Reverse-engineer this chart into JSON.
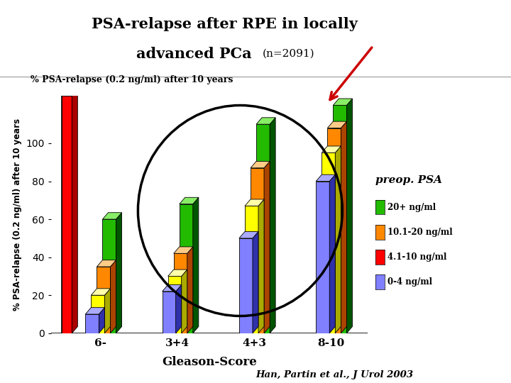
{
  "title_line1": "PSA-relapse after RPE in locally",
  "title_line2": "advanced PCa",
  "title_n": "(n=2091)",
  "ylabel": "% PSA-relapse (0.2 ng/ml) after 10 years",
  "xlabel": "Gleason-Score",
  "categories": [
    "6-",
    "3+4",
    "4+3",
    "8-10"
  ],
  "psa_labels": [
    "0-4 ng/ml",
    "4.1-10 ng/ml",
    "10.1-20 ng/ml",
    "20+ ng/ml"
  ],
  "bar_values": [
    [
      10,
      20,
      35,
      60
    ],
    [
      22,
      30,
      42,
      68
    ],
    [
      50,
      67,
      87,
      110
    ],
    [
      80,
      95,
      108,
      120
    ]
  ],
  "psa_colors_front": [
    "#8080FF",
    "#FFFF00",
    "#FF8800",
    "#FF1800",
    "#22BB00"
  ],
  "psa_colors_dark": [
    "#4040BB",
    "#BBBB00",
    "#BB5500",
    "#AA0000",
    "#007700"
  ],
  "psa_colors_light": [
    "#AAAAFF",
    "#FFFFAA",
    "#FFCC88",
    "#FF9999",
    "#88EE66"
  ],
  "bar_colors": [
    [
      "#8888FF",
      "#3535AA",
      "#BBBBFF"
    ],
    [
      "#FFFF00",
      "#AAAA00",
      "#FFFF99"
    ],
    [
      "#FF8800",
      "#AA4400",
      "#FFBB77"
    ],
    [
      "#FF1800",
      "#AA0000",
      "#FF9999"
    ],
    [
      "#22BB00",
      "#006600",
      "#88EE66"
    ]
  ],
  "yticks": [
    0,
    20,
    40,
    60,
    80,
    100
  ],
  "ylim": [
    0,
    125
  ],
  "bg_white": "#FFFFFF",
  "bg_tan": "#D2A679",
  "plot_bg": "#FFFFFF",
  "title_bg": "#FFFFFF",
  "citation": "Han, Partin et al., J Urol 2003"
}
